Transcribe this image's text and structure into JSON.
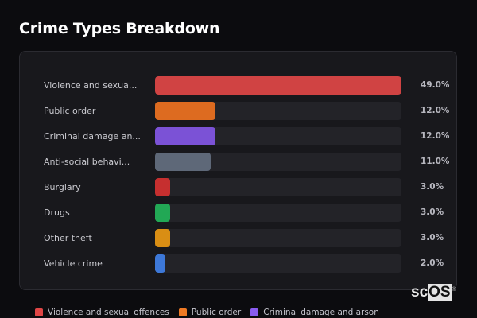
{
  "title": "Crime Types Breakdown",
  "chart_data": {
    "type": "bar",
    "orientation": "horizontal",
    "title": "Crime Types Breakdown",
    "categories": [
      "Violence and sexual offences",
      "Public order",
      "Criminal damage and arson",
      "Anti-social behaviour",
      "Burglary",
      "Drugs",
      "Other theft",
      "Vehicle crime"
    ],
    "display_labels": [
      "Violence and sexua...",
      "Public order",
      "Criminal damage an...",
      "Anti-social behavi...",
      "Burglary",
      "Drugs",
      "Other theft",
      "Vehicle crime"
    ],
    "values": [
      49.0,
      12.0,
      12.0,
      11.0,
      3.0,
      3.0,
      3.0,
      2.0
    ],
    "value_labels": [
      "49.0%",
      "12.0%",
      "12.0%",
      "11.0%",
      "3.0%",
      "3.0%",
      "3.0%",
      "2.0%"
    ],
    "colors": [
      "#d04343",
      "#dd6b20",
      "#7b52d6",
      "#5e6878",
      "#c62f2f",
      "#22a855",
      "#d98e14",
      "#3d78d8"
    ],
    "xlabel": "",
    "ylabel": "",
    "unit": "%",
    "max_value": 49.0,
    "grid": false,
    "legend_position": "bottom"
  },
  "legend": {
    "items": [
      {
        "label": "Violence and sexual offences",
        "color": "#e04646"
      },
      {
        "label": "Public order",
        "color": "#f07a24"
      },
      {
        "label": "Criminal damage and arson",
        "color": "#8a5cf0"
      }
    ]
  },
  "branding": {
    "logo_prefix": "sc",
    "logo_suffix": "OS",
    "registered_mark": "®"
  }
}
